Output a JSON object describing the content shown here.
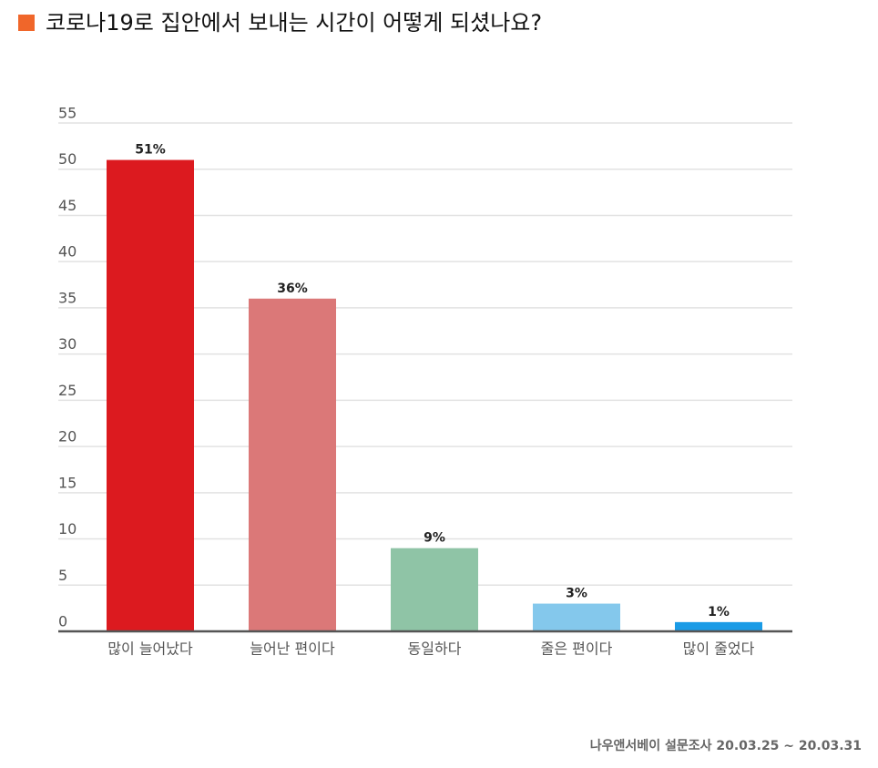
{
  "chart_data": {
    "type": "bar",
    "title": "코로나19로 집안에서 보내는 시간이 어떻게 되셨나요?",
    "categories": [
      "많이 늘어났다",
      "늘어난 편이다",
      "동일하다",
      "줄은 편이다",
      "많이 줄었다"
    ],
    "values": [
      51,
      36,
      9,
      3,
      1
    ],
    "value_labels": [
      "51%",
      "36%",
      "9%",
      "3%",
      "1%"
    ],
    "colors": [
      "#dc1a1f",
      "#db7878",
      "#8fc4a6",
      "#84c8ec",
      "#1a9be6"
    ],
    "ylim": [
      0,
      55
    ],
    "yticks": [
      0,
      5,
      10,
      15,
      20,
      25,
      30,
      35,
      40,
      45,
      50,
      55
    ],
    "grid": true,
    "source": "나우앤서베이 설문조사 20.03.25 ~ 20.03.31"
  }
}
